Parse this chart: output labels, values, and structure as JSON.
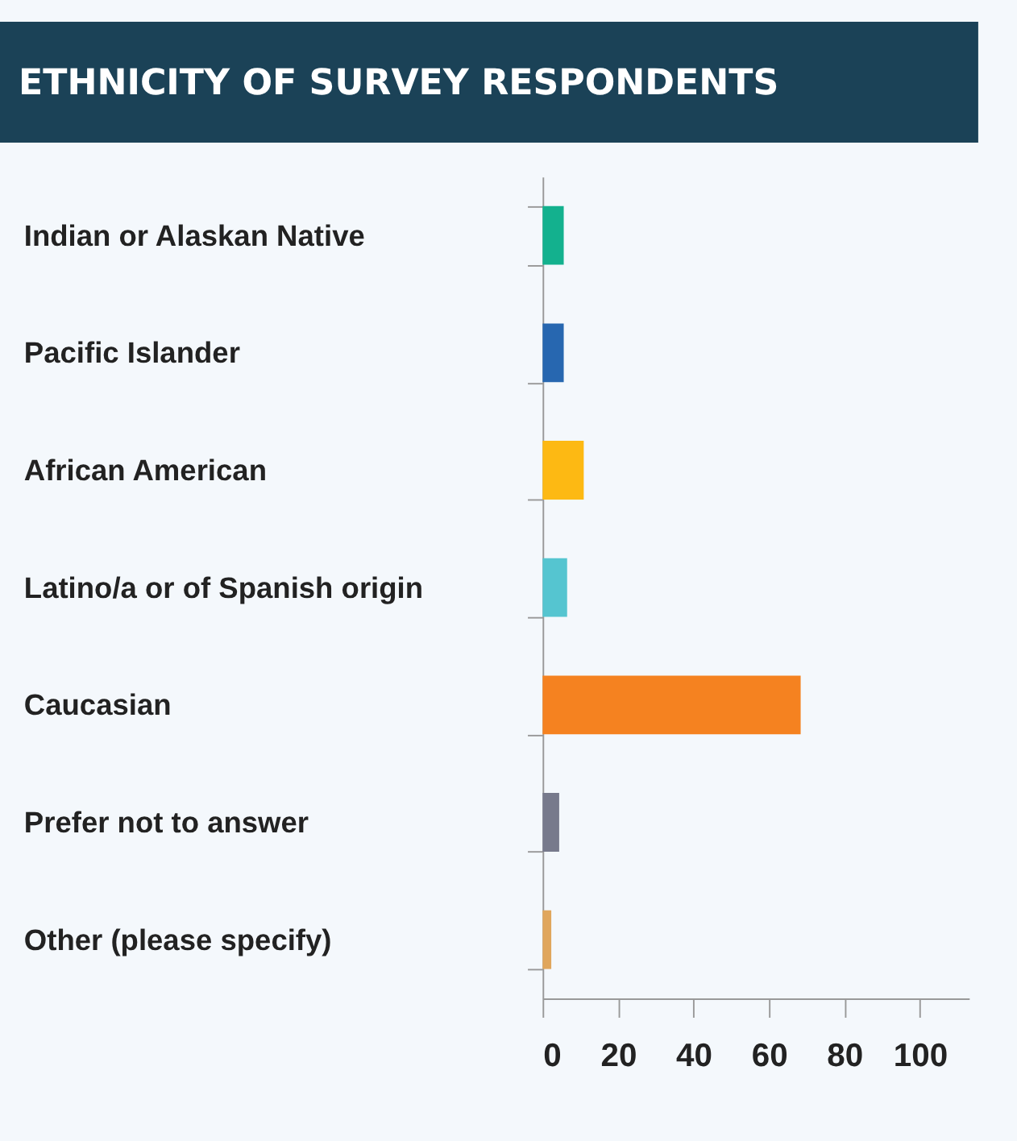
{
  "chart_data": {
    "type": "bar",
    "orientation": "horizontal",
    "title": "ETHNICITY OF SURVEY RESPONDENTS",
    "categories": [
      "Indian or Alaskan Native",
      "Pacific Islander",
      "African American",
      "Latino/a or of Spanish origin",
      "Caucasian",
      "Prefer not to answer",
      "Other (please specify)"
    ],
    "values": [
      5.6,
      5.6,
      10.9,
      6.5,
      68.4,
      4.4,
      2.3
    ],
    "colors": [
      "#13b18e",
      "#2767b0",
      "#fdb913",
      "#55c5d0",
      "#f58220",
      "#777a8c",
      "#e0a65c"
    ],
    "xlim": [
      0,
      113
    ],
    "xticks": [
      0,
      20,
      40,
      60,
      80,
      100
    ],
    "grid": false
  }
}
